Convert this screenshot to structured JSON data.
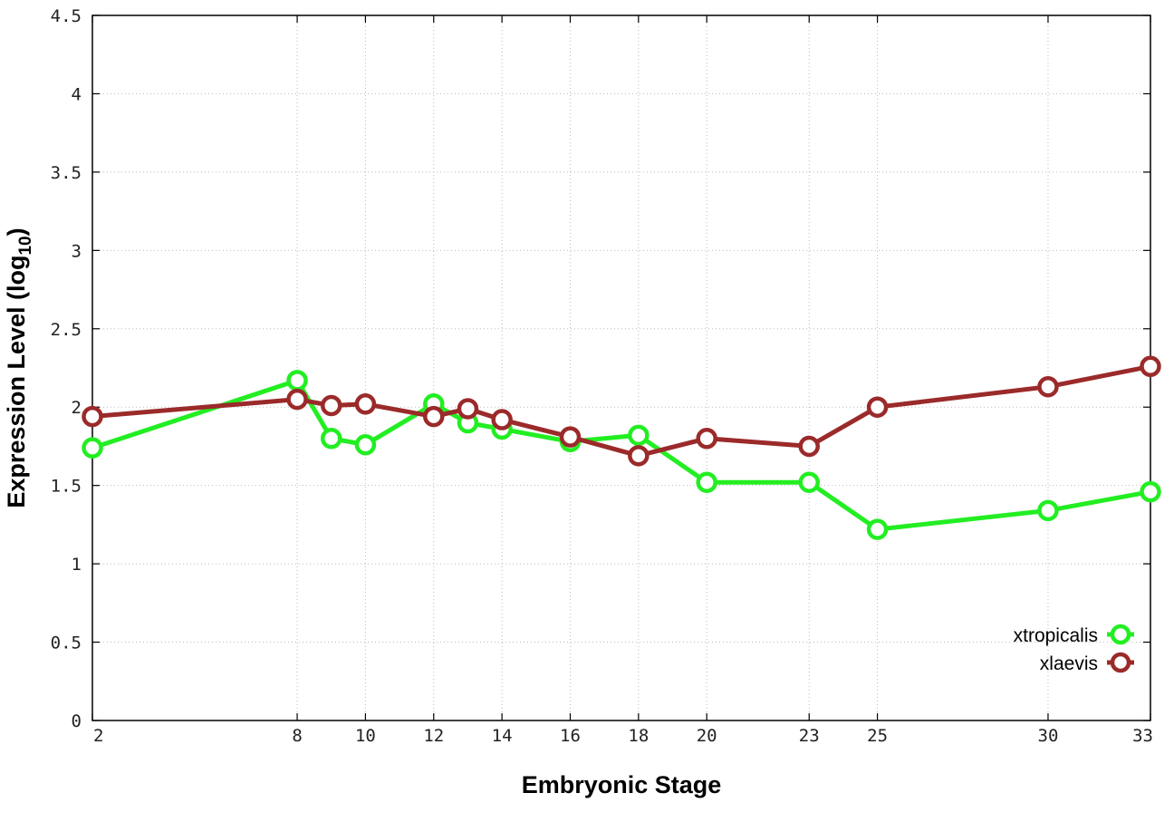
{
  "chart_data": {
    "type": "line",
    "xlabel": "Embryonic Stage",
    "ylabel_main": "Expression Level (log",
    "ylabel_sub": "10",
    "ylabel_close": ")",
    "xlim": [
      2,
      33
    ],
    "ylim": [
      0,
      4.5
    ],
    "x_ticks": [
      2,
      8,
      10,
      12,
      14,
      16,
      18,
      20,
      23,
      25,
      30,
      33
    ],
    "y_ticks": [
      0,
      0.5,
      1,
      1.5,
      2,
      2.5,
      3,
      3.5,
      4,
      4.5
    ],
    "y_tick_labels": [
      "0",
      "0.5",
      "1",
      "1.5",
      "2",
      "2.5",
      "3",
      "3.5",
      "4",
      "4.5"
    ],
    "grid": true,
    "legend_position": "bottom-right",
    "series": [
      {
        "name": "xtropicalis",
        "color": "#22ee22",
        "x": [
          2,
          8,
          9,
          10,
          12,
          13,
          14,
          16,
          18,
          20,
          23,
          25,
          30,
          33
        ],
        "y": [
          1.74,
          2.17,
          1.8,
          1.76,
          2.02,
          1.9,
          1.86,
          1.78,
          1.82,
          1.52,
          1.52,
          1.22,
          1.34,
          1.46
        ]
      },
      {
        "name": "xlaevis",
        "color": "#9b2a2a",
        "x": [
          2,
          8,
          9,
          10,
          12,
          13,
          14,
          16,
          18,
          20,
          23,
          25,
          30,
          33
        ],
        "y": [
          1.94,
          2.05,
          2.01,
          2.02,
          1.94,
          1.99,
          1.92,
          1.81,
          1.69,
          1.8,
          1.75,
          2.0,
          2.13,
          2.26
        ]
      }
    ]
  }
}
